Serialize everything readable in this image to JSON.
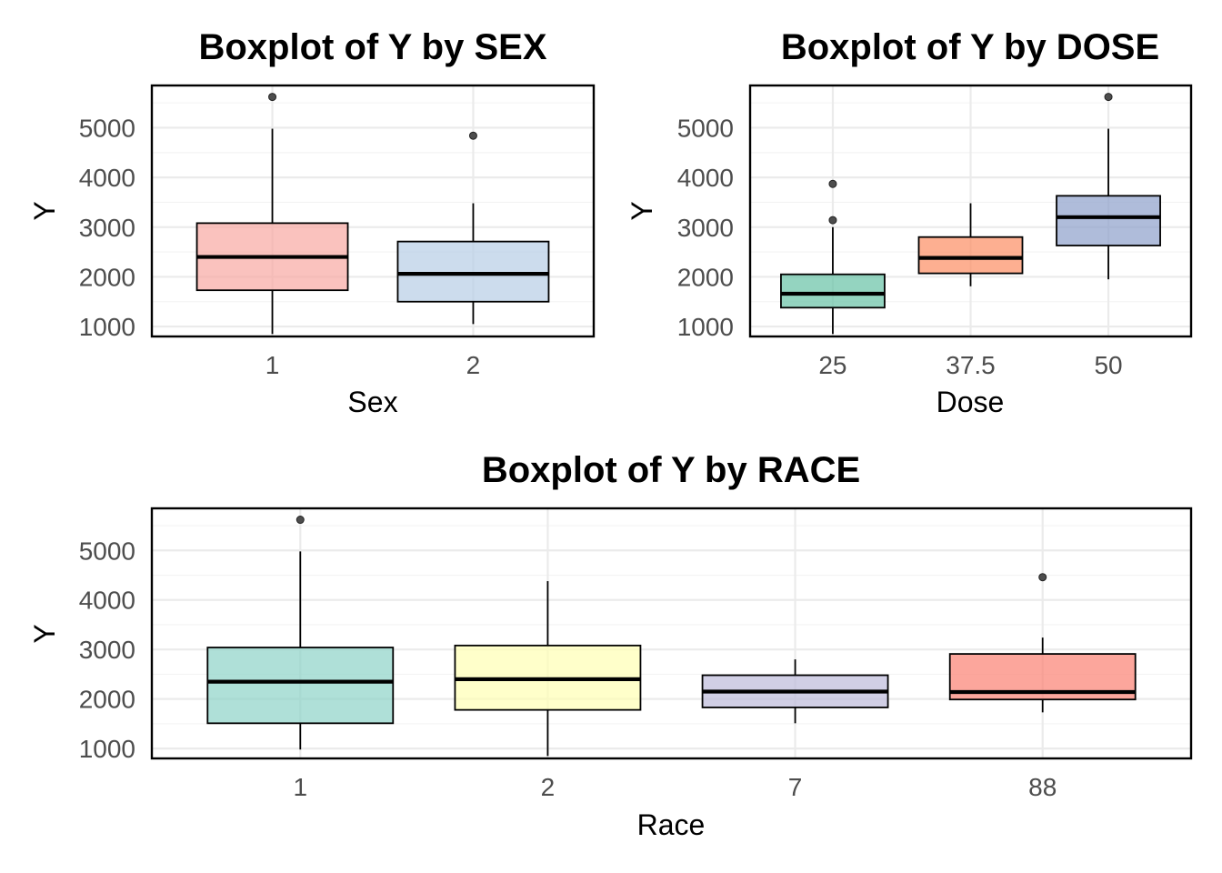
{
  "chart_data": [
    {
      "type": "boxplot",
      "title": "Boxplot of Y by SEX",
      "xlabel": "Sex",
      "ylabel": "Y",
      "ylim": [
        800,
        5850
      ],
      "yticks": [
        1000,
        2000,
        3000,
        4000,
        5000
      ],
      "grid": true,
      "legend": "none",
      "categories": [
        "1",
        "2"
      ],
      "boxes": [
        {
          "category": "1",
          "whisker_low": 850,
          "q1": 1730,
          "median": 2400,
          "q3": 3080,
          "whisker_high": 4980,
          "outliers": [
            5620
          ],
          "color": "#f8a8a2"
        },
        {
          "category": "2",
          "whisker_low": 1050,
          "q1": 1500,
          "median": 2060,
          "q3": 2710,
          "whisker_high": 3480,
          "outliers": [
            4840
          ],
          "color": "#b7cde6"
        }
      ]
    },
    {
      "type": "boxplot",
      "title": "Boxplot of Y by DOSE",
      "xlabel": "Dose",
      "ylabel": "Y",
      "ylim": [
        800,
        5850
      ],
      "yticks": [
        1000,
        2000,
        3000,
        4000,
        5000
      ],
      "grid": true,
      "legend": "none",
      "categories": [
        "25",
        "37.5",
        "50"
      ],
      "boxes": [
        {
          "category": "25",
          "whisker_low": 850,
          "q1": 1380,
          "median": 1660,
          "q3": 2050,
          "whisker_high": 3000,
          "outliers": [
            3140,
            3870
          ],
          "color": "#66c2a5"
        },
        {
          "category": "37.5",
          "whisker_low": 1810,
          "q1": 2070,
          "median": 2380,
          "q3": 2800,
          "whisker_high": 3480,
          "outliers": [],
          "color": "#fc8d62"
        },
        {
          "category": "50",
          "whisker_low": 1950,
          "q1": 2630,
          "median": 3200,
          "q3": 3630,
          "whisker_high": 4980,
          "outliers": [
            5620
          ],
          "color": "#8da0cb"
        }
      ]
    },
    {
      "type": "boxplot",
      "title": "Boxplot of Y by RACE",
      "xlabel": "Race",
      "ylabel": "Y",
      "ylim": [
        800,
        5850
      ],
      "yticks": [
        1000,
        2000,
        3000,
        4000,
        5000
      ],
      "grid": true,
      "legend": "none",
      "categories": [
        "1",
        "2",
        "7",
        "88"
      ],
      "boxes": [
        {
          "category": "1",
          "whisker_low": 980,
          "q1": 1510,
          "median": 2350,
          "q3": 3040,
          "whisker_high": 4980,
          "outliers": [
            5620
          ],
          "color": "#8dd3c7"
        },
        {
          "category": "2",
          "whisker_low": 850,
          "q1": 1780,
          "median": 2400,
          "q3": 3080,
          "whisker_high": 4380,
          "outliers": [],
          "color": "#ffffb3"
        },
        {
          "category": "7",
          "whisker_low": 1510,
          "q1": 1830,
          "median": 2150,
          "q3": 2480,
          "whisker_high": 2800,
          "outliers": [],
          "color": "#bebada"
        },
        {
          "category": "88",
          "whisker_low": 1730,
          "q1": 1990,
          "median": 2140,
          "q3": 2910,
          "whisker_high": 3240,
          "outliers": [
            4460
          ],
          "color": "#fb8072"
        }
      ]
    }
  ]
}
